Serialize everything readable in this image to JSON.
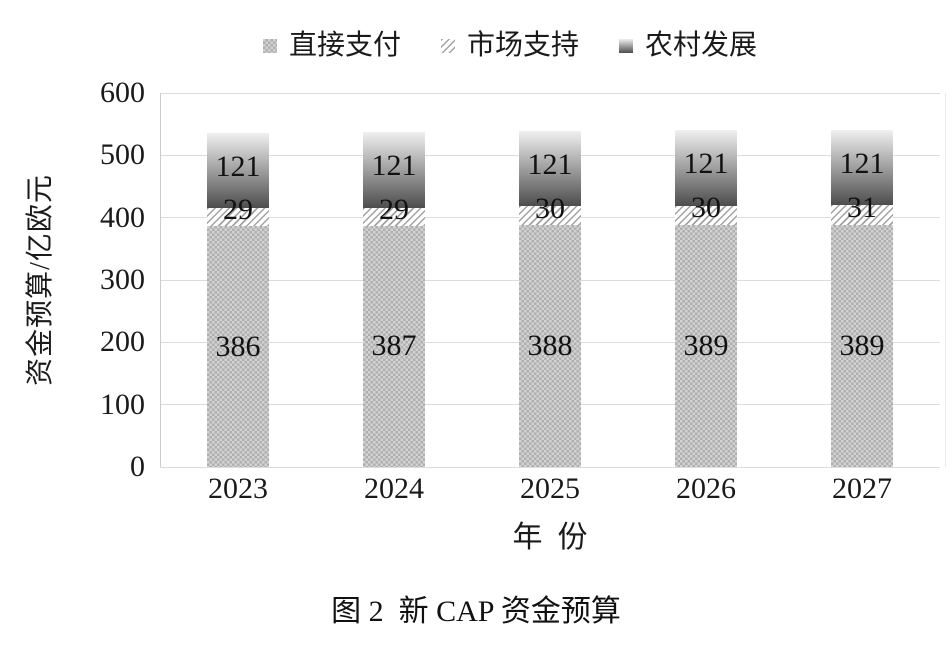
{
  "figure": {
    "caption": "图 2  新 CAP 资金预算"
  },
  "chart_data": {
    "type": "bar",
    "stacked": true,
    "categories": [
      "2023",
      "2024",
      "2025",
      "2026",
      "2027"
    ],
    "series": [
      {
        "name": "直接支付",
        "pattern": "checker",
        "values": [
          386,
          387,
          388,
          389,
          389
        ]
      },
      {
        "name": "市场支持",
        "pattern": "diagonal-hatch",
        "values": [
          29,
          29,
          30,
          30,
          31
        ]
      },
      {
        "name": "农村发展",
        "pattern": "vertical-gradient",
        "values": [
          121,
          121,
          121,
          121,
          121
        ]
      }
    ],
    "xlabel": "年  份",
    "ylabel": "资金预算/亿欧元",
    "ylim": [
      0,
      600
    ],
    "ytick_interval": 100,
    "yticks": [
      0,
      100,
      200,
      300,
      400,
      500,
      600
    ],
    "grid": true,
    "legend_position": "top",
    "colors": {
      "checker_dark": "#afafaf",
      "checker_light": "#d3d3d3",
      "hatch_line": "#a2a2a2",
      "hatch_bg": "#ffffff",
      "gradient_top": "#f0f0f0",
      "gradient_bottom": "#4d4d4d",
      "gridline": "#dcdcdc",
      "axis_line": "#cccccc",
      "text": "#111111"
    }
  }
}
